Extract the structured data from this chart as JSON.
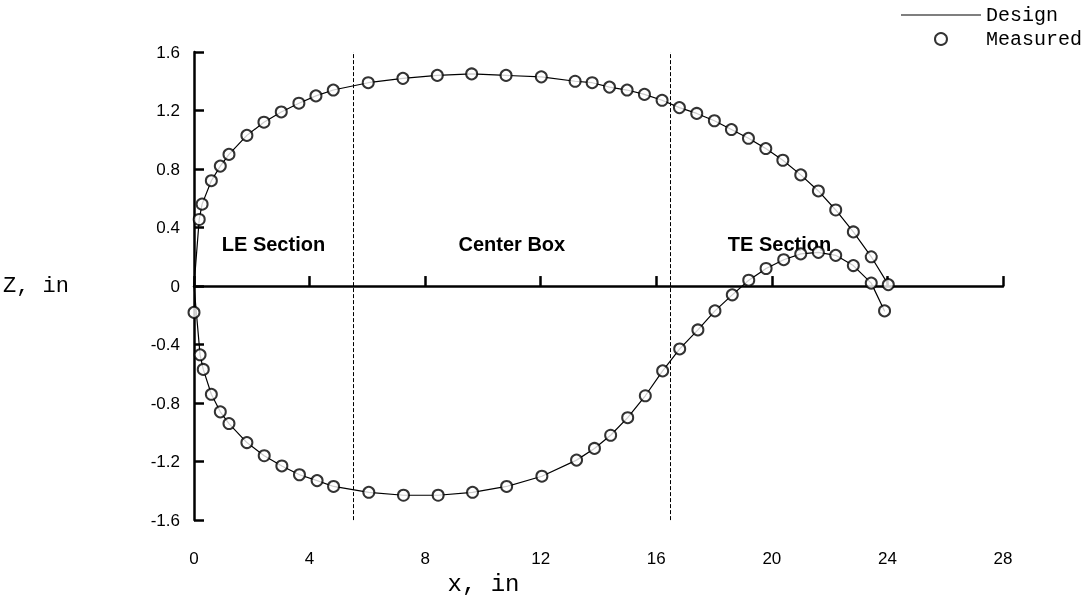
{
  "chart_data": {
    "type": "line",
    "xlabel": "x, in",
    "ylabel": "Z, in",
    "xlim": [
      0,
      28
    ],
    "xticks": [
      0,
      4,
      8,
      12,
      16,
      20,
      24,
      28
    ],
    "ylim": [
      -1.6,
      1.6
    ],
    "yticks": [
      -1.6,
      -1.2,
      -0.8,
      -0.4,
      0,
      0.4,
      0.8,
      1.2,
      1.6
    ],
    "legend": "top right",
    "series": [
      {
        "name": "Design",
        "color": "#000000",
        "marker": "none",
        "line_style": "solid",
        "x": [
          0,
          0.18,
          0.28,
          0.6,
          0.91,
          1.21,
          1.83,
          2.42,
          3.02,
          3.63,
          4.22,
          4.82,
          6.03,
          7.23,
          8.42,
          9.61,
          10.8,
          12.02,
          13.19,
          13.78,
          14.38,
          14.99,
          15.59,
          16.2,
          16.8,
          17.4,
          18.01,
          18.6,
          19.19,
          19.79,
          20.38,
          21.0,
          21.61,
          22.21,
          22.82,
          23.44,
          24.03,
          null,
          0,
          0.21,
          0.32,
          0.6,
          0.91,
          1.21,
          1.83,
          2.43,
          3.04,
          3.65,
          4.26,
          4.83,
          6.05,
          7.25,
          8.45,
          9.64,
          10.82,
          12.04,
          13.24,
          13.86,
          14.42,
          15.01,
          15.62,
          16.22,
          16.81,
          17.44,
          18.03,
          18.63,
          19.2,
          19.8,
          20.41,
          21.0,
          21.61,
          22.21,
          22.82,
          23.44,
          23.9
        ],
        "values": [
          0,
          0.455,
          0.56,
          0.72,
          0.82,
          0.9,
          1.03,
          1.12,
          1.19,
          1.25,
          1.3,
          1.34,
          1.39,
          1.42,
          1.44,
          1.45,
          1.44,
          1.43,
          1.4,
          1.39,
          1.36,
          1.34,
          1.31,
          1.27,
          1.22,
          1.18,
          1.13,
          1.07,
          1.01,
          0.94,
          0.86,
          0.76,
          0.65,
          0.52,
          0.37,
          0.2,
          0.01,
          null,
          0,
          -0.47,
          -0.57,
          -0.74,
          -0.86,
          -0.94,
          -1.07,
          -1.16,
          -1.23,
          -1.29,
          -1.33,
          -1.37,
          -1.41,
          -1.43,
          -1.43,
          -1.41,
          -1.37,
          -1.3,
          -1.19,
          -1.11,
          -1.02,
          -0.9,
          -0.75,
          -0.58,
          -0.43,
          -0.3,
          -0.17,
          -0.06,
          0.04,
          0.12,
          0.18,
          0.22,
          0.23,
          0.21,
          0.14,
          0.02,
          -0.17
        ]
      },
      {
        "name": "Measured",
        "type": "scatter",
        "color": "#000000",
        "marker": "circle",
        "x": [
          0.18,
          0.28,
          0.6,
          0.91,
          1.21,
          1.83,
          2.42,
          3.02,
          3.63,
          4.22,
          4.82,
          6.03,
          7.23,
          8.42,
          9.61,
          10.8,
          12.02,
          13.19,
          13.78,
          14.38,
          14.99,
          15.59,
          16.2,
          16.8,
          17.4,
          18.01,
          18.6,
          19.19,
          19.79,
          20.38,
          21.0,
          21.61,
          22.21,
          22.82,
          23.44,
          24.03,
          0,
          0.21,
          0.32,
          0.6,
          0.91,
          1.21,
          1.83,
          2.43,
          3.04,
          3.65,
          4.26,
          4.83,
          6.05,
          7.25,
          8.45,
          9.64,
          10.82,
          12.04,
          13.24,
          13.86,
          14.42,
          15.01,
          15.62,
          16.22,
          16.81,
          17.44,
          18.03,
          18.63,
          19.2,
          19.8,
          20.41,
          21.0,
          21.61,
          22.21,
          22.82,
          23.44,
          23.9
        ],
        "values": [
          0.455,
          0.56,
          0.72,
          0.82,
          0.9,
          1.03,
          1.12,
          1.19,
          1.25,
          1.3,
          1.34,
          1.39,
          1.42,
          1.44,
          1.45,
          1.44,
          1.43,
          1.4,
          1.39,
          1.36,
          1.34,
          1.31,
          1.27,
          1.22,
          1.18,
          1.13,
          1.07,
          1.01,
          0.94,
          0.86,
          0.76,
          0.65,
          0.52,
          0.37,
          0.2,
          0.01,
          -0.18,
          -0.47,
          -0.57,
          -0.74,
          -0.86,
          -0.94,
          -1.07,
          -1.16,
          -1.23,
          -1.29,
          -1.33,
          -1.37,
          -1.41,
          -1.43,
          -1.43,
          -1.41,
          -1.37,
          -1.3,
          -1.19,
          -1.11,
          -1.02,
          -0.9,
          -0.75,
          -0.58,
          -0.43,
          -0.3,
          -0.17,
          -0.06,
          0.04,
          0.12,
          0.18,
          0.22,
          0.23,
          0.21,
          0.14,
          0.02,
          -0.17
        ]
      }
    ],
    "ref_lines": [
      {
        "axis": "x",
        "value": 5.5,
        "line_style": "dashed",
        "color": "#000000"
      },
      {
        "axis": "x",
        "value": 16.5,
        "line_style": "dashed",
        "color": "#000000"
      }
    ],
    "annotations": [
      "LE Section",
      "Center Box",
      "TE Section"
    ]
  }
}
